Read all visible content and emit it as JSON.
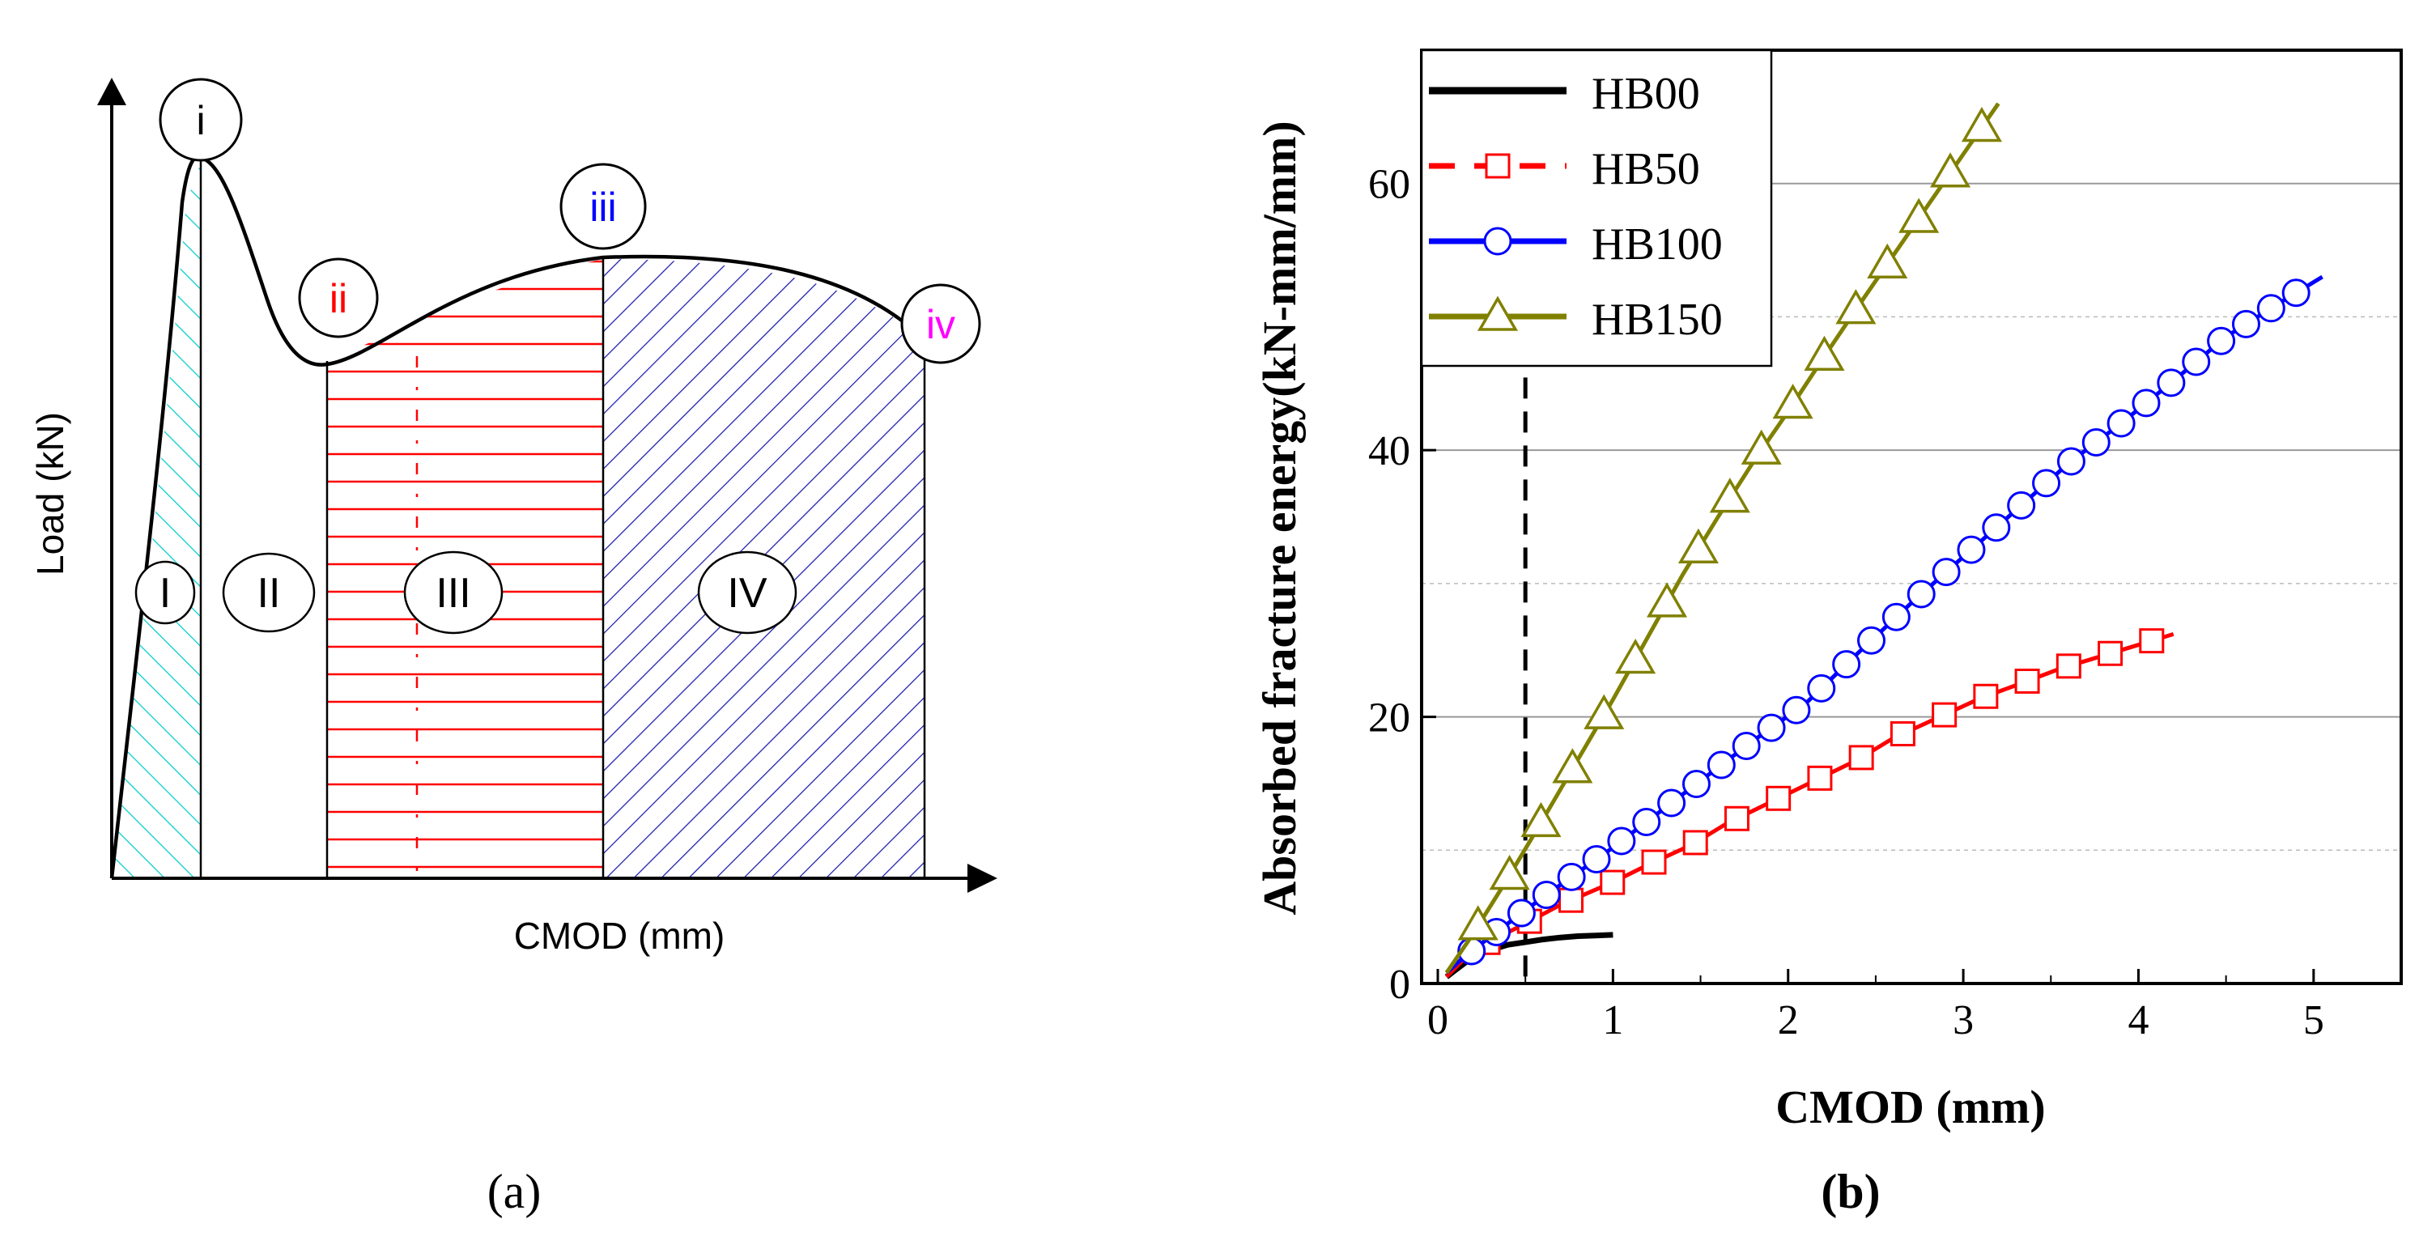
{
  "chart_data": [
    {
      "type": "line",
      "panel_label": "(a)",
      "xlabel": "CMOD (mm)",
      "ylabel": "Load (kN)",
      "points": [
        {
          "id": "i",
          "label": "i",
          "color": "#000000"
        },
        {
          "id": "ii",
          "label": "ii",
          "color": "#ff0000"
        },
        {
          "id": "iii",
          "label": "iii",
          "color": "#0000ff"
        },
        {
          "id": "iv",
          "label": "iv",
          "color": "#ff00ff"
        }
      ],
      "regions": [
        {
          "id": "I",
          "label": "I",
          "fill_color": "#00cccc"
        },
        {
          "id": "II",
          "label": "II",
          "fill_color": "#ffffff"
        },
        {
          "id": "III",
          "label": "III",
          "fill_color": "#ff0000"
        },
        {
          "id": "IV",
          "label": "IV",
          "fill_color": "#0000cc"
        }
      ]
    },
    {
      "type": "line",
      "panel_label": "(b)",
      "xlabel": "CMOD (mm)",
      "ylabel": "Absorbed fracture energy(kN-mm/mm)",
      "xlim": [
        0,
        5.5
      ],
      "ylim": [
        0,
        70
      ],
      "xticks": [
        0,
        1,
        2,
        3,
        4,
        5
      ],
      "yticks": [
        0,
        20,
        40,
        60
      ],
      "grid": "horizontal",
      "legend_position": "top-left",
      "reference_line_x": 0.5,
      "series": [
        {
          "name": "HB00",
          "color": "#000000",
          "marker": "none",
          "x": [
            0.05,
            0.1,
            0.15,
            0.2,
            0.3,
            0.4,
            0.5,
            0.6,
            0.7,
            0.8,
            0.9,
            1.0
          ],
          "y": [
            0.5,
            1.0,
            1.5,
            2.0,
            2.5,
            2.9,
            3.1,
            3.3,
            3.45,
            3.55,
            3.6,
            3.65
          ]
        },
        {
          "name": "HB50",
          "color": "#ff0000",
          "marker": "square",
          "x": [
            0.05,
            0.2,
            0.5,
            0.7,
            1.0,
            1.2,
            1.45,
            1.65,
            1.9,
            2.15,
            2.4,
            2.6,
            2.85,
            3.1,
            3.35,
            3.55,
            3.8,
            4.05,
            4.2
          ],
          "y": [
            0.5,
            2.5,
            4.5,
            5.9,
            7.6,
            8.9,
            10.4,
            12.0,
            13.6,
            15.2,
            16.8,
            18.4,
            19.9,
            21.4,
            22.6,
            23.6,
            24.6,
            25.6,
            26.2
          ],
          "marker_count": 17
        },
        {
          "name": "HB100",
          "color": "#0000ff",
          "marker": "circle",
          "x": [
            0.05,
            0.15,
            0.3,
            0.5,
            0.7,
            1.0,
            1.2,
            1.5,
            1.8,
            2.1,
            2.4,
            2.7,
            3.0,
            3.3,
            3.6,
            3.9,
            4.2,
            4.5,
            4.8,
            5.05
          ],
          "y": [
            0.8,
            2.0,
            3.5,
            5.5,
            7.4,
            10.2,
            12.2,
            15.2,
            18.2,
            21.0,
            24.8,
            28.5,
            32.0,
            35.5,
            39.0,
            42.0,
            45.2,
            48.5,
            51.0,
            53.0
          ],
          "marker_count": 34
        },
        {
          "name": "HB150",
          "color": "#808000",
          "marker": "triangle",
          "x": [
            0.05,
            0.2,
            0.4,
            0.6,
            0.8,
            1.0,
            1.2,
            1.4,
            1.6,
            1.8,
            2.0,
            2.2,
            2.4,
            2.6,
            2.8,
            3.0,
            3.2
          ],
          "y": [
            0.8,
            3.7,
            7.9,
            12.3,
            16.8,
            21.3,
            26.0,
            30.7,
            35.0,
            39.1,
            42.9,
            46.9,
            50.8,
            54.6,
            58.4,
            62.2,
            66.0
          ],
          "marker_count": 17
        }
      ]
    }
  ]
}
